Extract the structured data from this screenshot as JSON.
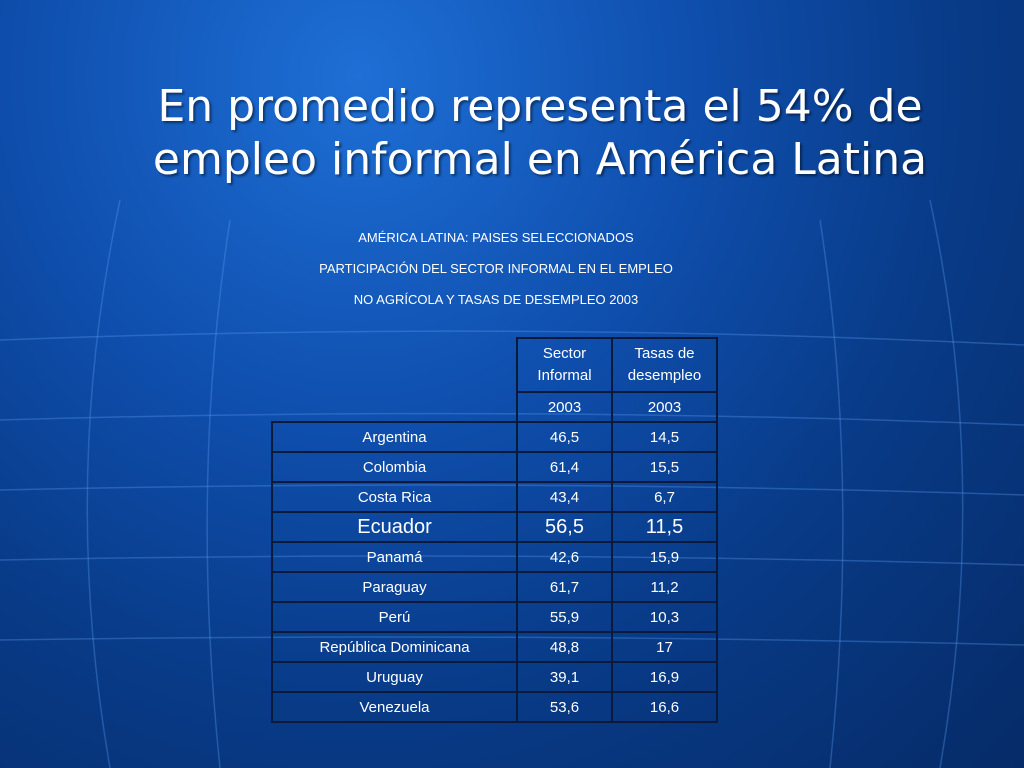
{
  "title": {
    "line1": "En promedio representa el 54% de",
    "line2": "empleo informal en América Latina"
  },
  "subtitles": [
    "AMÉRICA LATINA: PAISES SELECCIONADOS",
    "PARTICIPACIÓN DEL SECTOR INFORMAL EN EL EMPLEO",
    "NO AGRÍCOLA Y TASAS DE DESEMPLEO 2003"
  ],
  "table": {
    "headers": [
      "Sector Informal",
      "Tasas de desempleo"
    ],
    "years": [
      "2003",
      "2003"
    ],
    "rows": [
      [
        "Argentina",
        "46,5",
        "14,5"
      ],
      [
        "Colombia",
        "61,4",
        "15,5"
      ],
      [
        "Costa Rica",
        "43,4",
        "6,7"
      ],
      [
        "Ecuador",
        "56,5",
        "11,5"
      ],
      [
        "Panamá",
        "42,6",
        "15,9"
      ],
      [
        "Paraguay",
        "61,7",
        "11,2"
      ],
      [
        "Perú",
        "55,9",
        "10,3"
      ],
      [
        "República Dominicana",
        "48,8",
        "17"
      ],
      [
        "Uruguay",
        "39,1",
        "16,9"
      ],
      [
        "Venezuela",
        "53,6",
        "16,6"
      ]
    ]
  },
  "colors": {
    "background": "#0f4fae",
    "text": "#ffffff",
    "table_border": "#0a1a3a"
  }
}
